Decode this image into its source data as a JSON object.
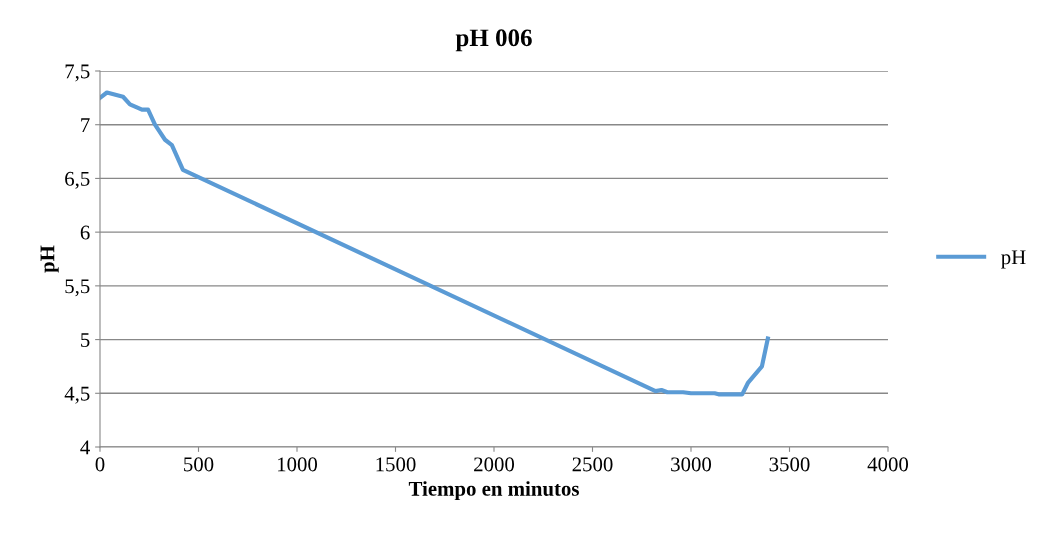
{
  "chart_data": {
    "type": "line",
    "title": "pH 006",
    "xlabel": "Tiempo en minutos",
    "ylabel": "pH",
    "series": [
      {
        "name": "pH",
        "color": "#5b9bd5",
        "x": [
          0,
          35,
          117,
          152,
          213,
          244,
          279,
          330,
          365,
          421,
          2820,
          2850,
          2880,
          2960,
          3000,
          3120,
          3140,
          3260,
          3290,
          3360,
          3390
        ],
        "values": [
          7.25,
          7.3,
          7.26,
          7.19,
          7.14,
          7.14,
          7.0,
          6.86,
          6.81,
          6.58,
          4.52,
          4.53,
          4.51,
          4.51,
          4.5,
          4.5,
          4.49,
          4.49,
          4.6,
          4.75,
          5.01
        ]
      }
    ],
    "xlim": [
      0,
      4000
    ],
    "xticks": [
      0,
      500,
      1000,
      1500,
      2000,
      2500,
      3000,
      3500,
      4000
    ],
    "ylim": [
      4,
      7.5
    ],
    "yticks": [
      {
        "value": 4,
        "label": "4"
      },
      {
        "value": 4.5,
        "label": "4,5"
      },
      {
        "value": 5,
        "label": "5"
      },
      {
        "value": 5.5,
        "label": "5,5"
      },
      {
        "value": 6,
        "label": "6"
      },
      {
        "value": 6.5,
        "label": "6,5"
      },
      {
        "value": 7,
        "label": "7"
      },
      {
        "value": 7.5,
        "label": "7,5"
      }
    ],
    "grid": "y",
    "legend": "right",
    "marker": "none",
    "line_style": "solid"
  }
}
